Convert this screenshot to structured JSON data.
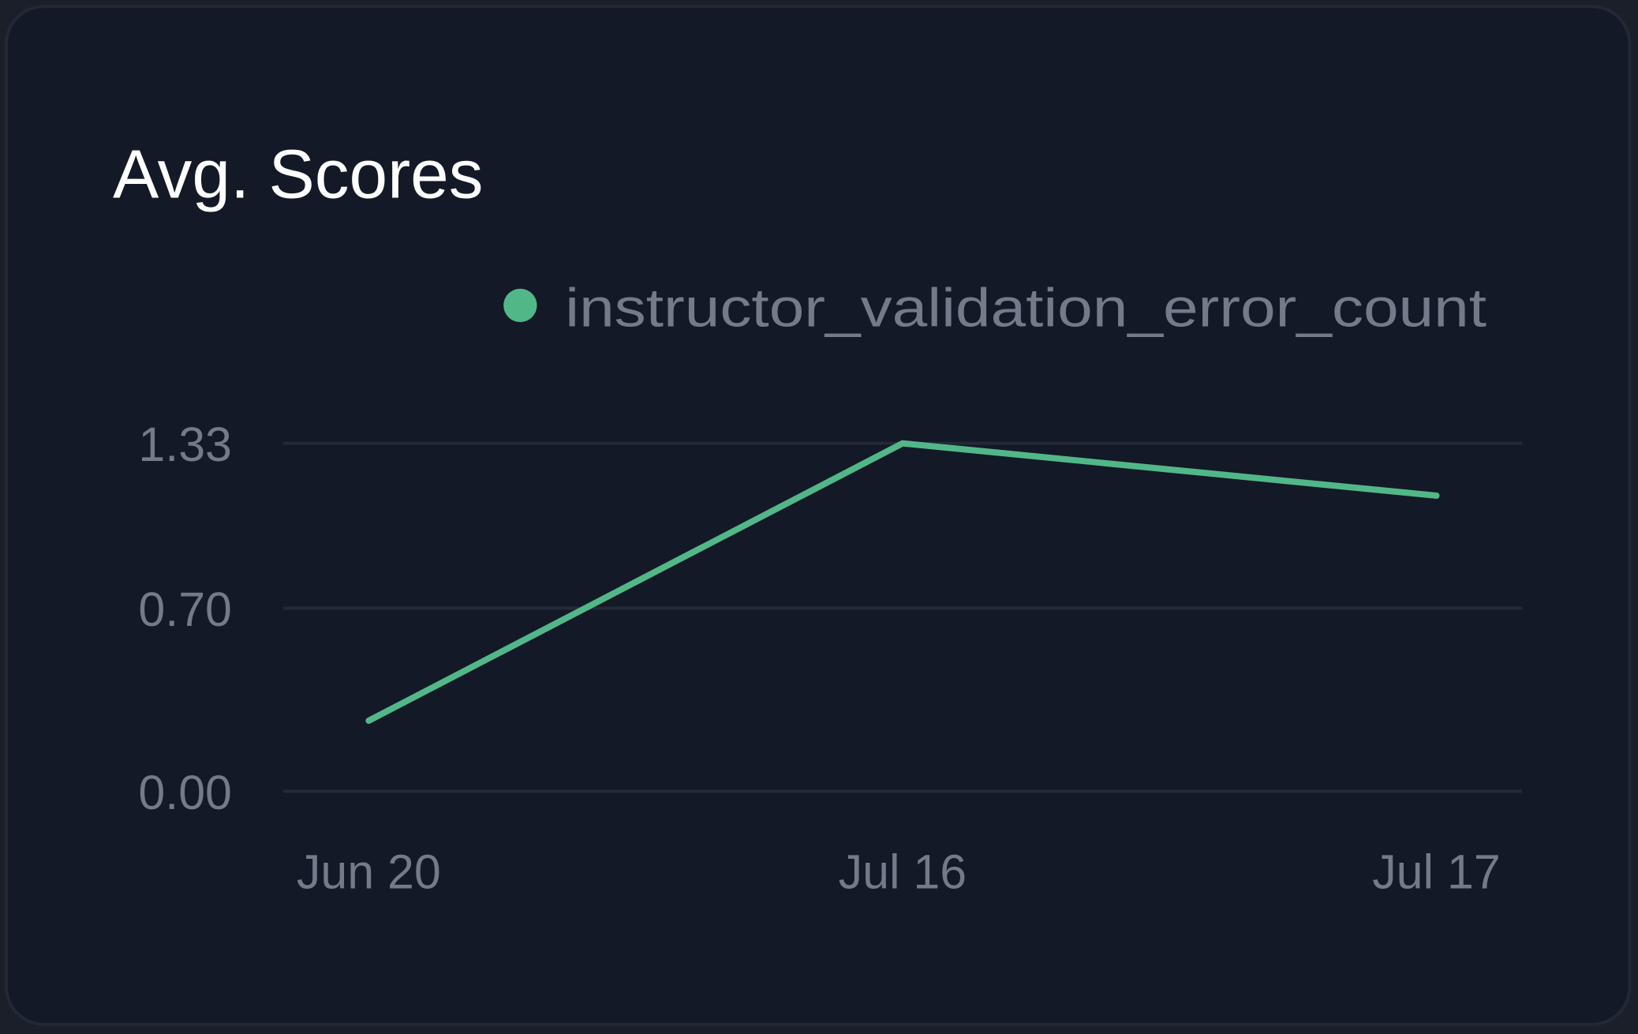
{
  "chart_data": {
    "type": "line",
    "title": "Avg. Scores",
    "categories": [
      "Jun 20",
      "Jul 16",
      "Jul 17"
    ],
    "series": [
      {
        "name": "instructor_validation_error_count",
        "values": [
          0.27,
          1.33,
          1.13
        ],
        "color": "#52b788"
      }
    ],
    "y_ticks": [
      "0.00",
      "0.70",
      "1.33"
    ],
    "ylim": [
      0,
      1.33
    ],
    "grid": true,
    "legend": "top-right",
    "colors": {
      "background": "#131926",
      "grid": "#232a37",
      "text_muted": "#737a8a",
      "title": "#ffffff"
    }
  }
}
